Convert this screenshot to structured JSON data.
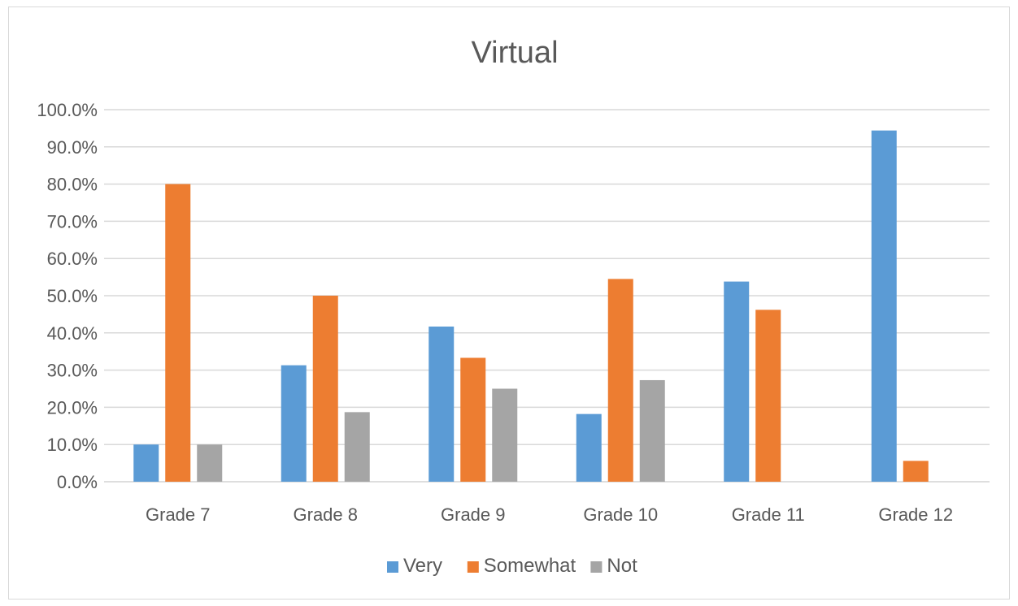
{
  "chart_data": {
    "type": "bar",
    "title": "Virtual",
    "xlabel": "",
    "ylabel": "",
    "categories": [
      "Grade 7",
      "Grade 8",
      "Grade 9",
      "Grade 10",
      "Grade 11",
      "Grade 12"
    ],
    "series": [
      {
        "name": "Very",
        "color": "#5b9bd5",
        "values": [
          10.0,
          31.3,
          41.7,
          18.2,
          53.8,
          94.4
        ]
      },
      {
        "name": "Somewhat",
        "color": "#ed7d31",
        "values": [
          80.0,
          50.0,
          33.3,
          54.5,
          46.2,
          5.6
        ]
      },
      {
        "name": "Not",
        "color": "#a5a5a5",
        "values": [
          10.0,
          18.7,
          25.0,
          27.3,
          0.0,
          0.0
        ]
      }
    ],
    "ylim": [
      0,
      100
    ],
    "yticks": [
      "0.0%",
      "10.0%",
      "20.0%",
      "30.0%",
      "40.0%",
      "50.0%",
      "60.0%",
      "70.0%",
      "80.0%",
      "90.0%",
      "100.0%"
    ],
    "grid": true,
    "legend": "bottom",
    "gridline_color": "#d9d9d9"
  }
}
